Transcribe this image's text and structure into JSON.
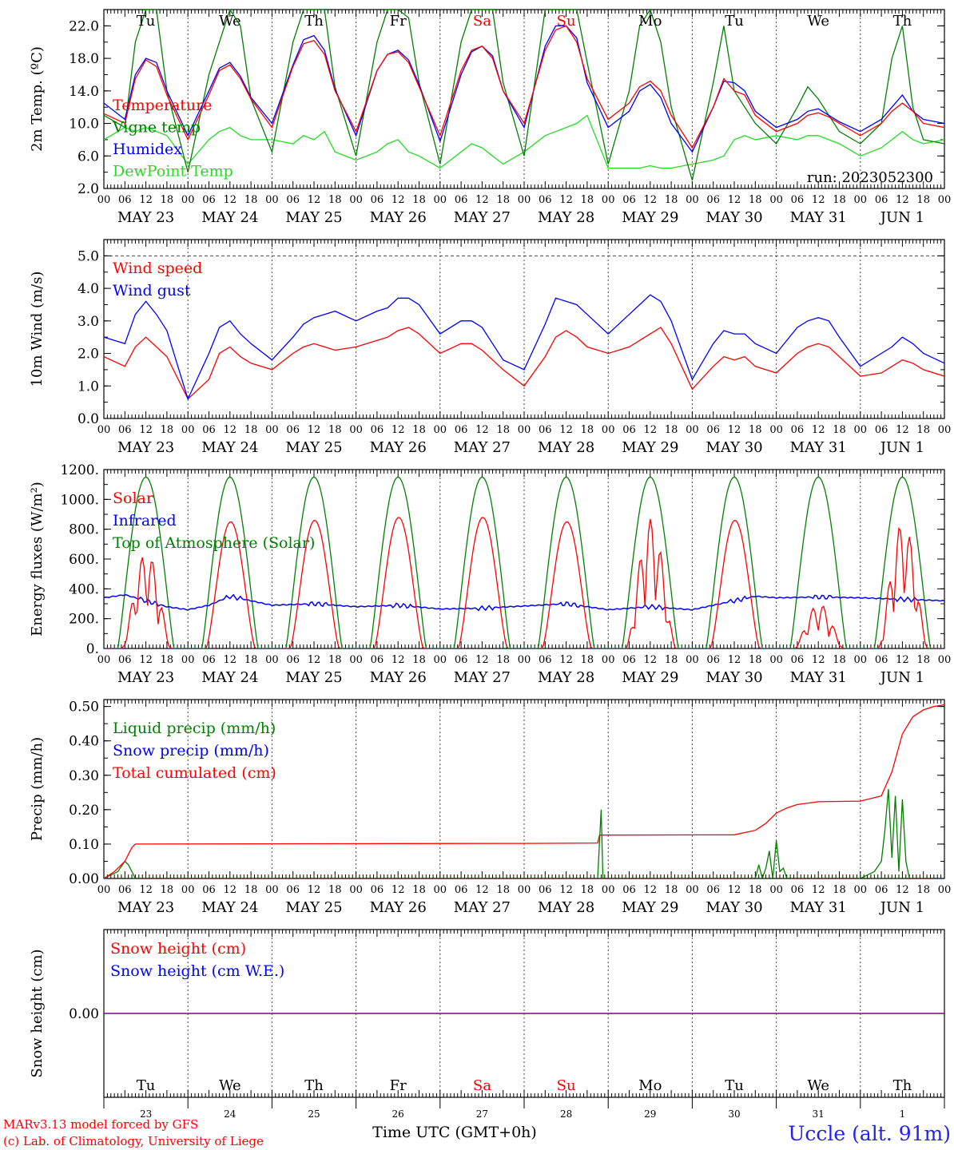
{
  "day_header": {
    "labels": [
      "Tu",
      "We",
      "Th",
      "Fr",
      "Sa",
      "Su",
      "Mo",
      "Tu",
      "We",
      "Th"
    ],
    "weekend_indices": [
      4,
      5
    ]
  },
  "date_axis": {
    "hour_ticks": [
      "00",
      "06",
      "12",
      "18"
    ],
    "dates": [
      "MAY 23",
      "MAY 24",
      "MAY 25",
      "MAY 26",
      "MAY 27",
      "MAY 28",
      "MAY 29",
      "MAY 30",
      "MAY 31",
      "JUN  1"
    ],
    "day_numbers": [
      "23",
      "24",
      "25",
      "26",
      "27",
      "28",
      "29",
      "30",
      "31",
      "1"
    ],
    "final_hour": "00"
  },
  "colors": {
    "red": "#ff0000",
    "green": "#008000",
    "blue": "#0000ff",
    "lightgreen": "#22dd22",
    "purple": "#800080",
    "axis": "#000000",
    "footer_red": "#ff0000",
    "location_blue": "#2222ee"
  },
  "chart_data": [
    {
      "type": "line",
      "id": "temperature",
      "ylabel": "2m Temp. (ºC)",
      "ylim": [
        2,
        24
      ],
      "yticks": [
        "2.0",
        "6.0",
        "10.0",
        "14.0",
        "18.0",
        "22.0"
      ],
      "ytick_values": [
        2,
        6,
        10,
        14,
        18,
        22
      ],
      "grid_y": [],
      "legend_placement": "top-left",
      "annotation": "run: 2023052300",
      "x": [
        0,
        6,
        9,
        12,
        15,
        18,
        24,
        30,
        33,
        36,
        39,
        42,
        48,
        54,
        57,
        60,
        63,
        66,
        72,
        78,
        81,
        84,
        87,
        90,
        96,
        102,
        105,
        108,
        111,
        114,
        120,
        126,
        129,
        132,
        135,
        138,
        144,
        150,
        153,
        156,
        159,
        162,
        168,
        174,
        177,
        180,
        183,
        186,
        192,
        198,
        201,
        204,
        207,
        210,
        216,
        222,
        225,
        228,
        231,
        234,
        240
      ],
      "series": [
        {
          "name": "Temperature",
          "color": "#ff0000",
          "values": [
            11.2,
            10.0,
            15.5,
            17.8,
            17.0,
            13.5,
            8.0,
            13.5,
            16.5,
            17.2,
            15.5,
            13.0,
            9.5,
            17.0,
            19.8,
            20.2,
            18.5,
            14.0,
            9.0,
            16.5,
            18.5,
            18.8,
            17.5,
            14.5,
            8.5,
            16.5,
            19.0,
            19.5,
            18.0,
            14.0,
            10.0,
            19.0,
            21.5,
            22.0,
            20.0,
            15.5,
            10.5,
            12.5,
            14.5,
            15.2,
            14.0,
            11.0,
            7.0,
            12.0,
            15.5,
            14.0,
            13.5,
            11.0,
            9.0,
            10.0,
            11.0,
            11.3,
            10.8,
            10.0,
            8.5,
            10.0,
            11.5,
            12.5,
            11.5,
            10.0,
            9.5
          ]
        },
        {
          "name": "Vigne temp",
          "color": "#008000",
          "values": [
            11.0,
            9.5,
            20.0,
            24.0,
            24.0,
            14.0,
            4.0,
            16.0,
            20.0,
            24.0,
            22.0,
            13.0,
            6.5,
            20.0,
            24.0,
            24.0,
            24.0,
            14.5,
            6.0,
            20.0,
            24.0,
            24.0,
            23.0,
            15.0,
            5.0,
            20.0,
            24.0,
            24.0,
            24.0,
            15.0,
            6.0,
            24.0,
            24.0,
            24.0,
            24.0,
            17.5,
            5.0,
            14.0,
            22.0,
            24.0,
            20.0,
            12.0,
            3.0,
            15.0,
            22.0,
            14.0,
            12.0,
            10.0,
            7.5,
            12.0,
            14.5,
            13.0,
            11.0,
            9.0,
            7.5,
            10.0,
            18.0,
            22.0,
            12.0,
            8.0,
            7.5
          ]
        },
        {
          "name": "Humidex",
          "color": "#0000ff",
          "values": [
            12.5,
            10.5,
            16.0,
            18.0,
            17.5,
            14.0,
            8.5,
            14.0,
            16.8,
            17.5,
            15.8,
            13.2,
            10.0,
            17.2,
            20.3,
            20.8,
            19.0,
            14.2,
            8.5,
            16.5,
            18.5,
            19.0,
            17.8,
            14.8,
            7.8,
            16.0,
            18.8,
            19.5,
            18.3,
            14.0,
            9.5,
            19.5,
            22.0,
            22.0,
            20.5,
            15.0,
            9.5,
            11.5,
            14.0,
            14.8,
            13.2,
            10.0,
            6.5,
            12.0,
            15.2,
            15.0,
            14.0,
            11.5,
            9.5,
            10.5,
            11.5,
            11.8,
            11.0,
            10.2,
            9.0,
            10.5,
            12.0,
            13.5,
            11.5,
            10.5,
            10.0
          ]
        },
        {
          "name": "DewPoint Temp",
          "color": "#22dd22",
          "values": [
            8.0,
            9.5,
            9.0,
            9.5,
            9.0,
            8.5,
            5.0,
            8.0,
            9.0,
            9.5,
            8.5,
            8.0,
            8.0,
            7.5,
            8.5,
            8.0,
            9.0,
            6.5,
            5.5,
            6.5,
            7.5,
            8.0,
            6.5,
            6.0,
            4.5,
            6.5,
            7.5,
            7.0,
            6.0,
            5.0,
            6.5,
            8.5,
            9.0,
            9.5,
            10.0,
            11.0,
            4.5,
            4.5,
            4.5,
            4.8,
            4.5,
            4.5,
            5.0,
            5.5,
            6.0,
            8.0,
            8.5,
            8.0,
            8.5,
            8.0,
            8.5,
            8.5,
            8.0,
            7.5,
            6.0,
            7.0,
            8.0,
            9.0,
            8.0,
            7.5,
            8.0
          ]
        }
      ]
    },
    {
      "type": "line",
      "id": "wind",
      "ylabel": "10m Wind (m/s)",
      "ylim": [
        0,
        5.5
      ],
      "yticks": [
        "0.0",
        "1.0",
        "2.0",
        "3.0",
        "4.0",
        "5.0"
      ],
      "ytick_values": [
        0,
        1,
        2,
        3,
        4,
        5
      ],
      "grid_y": [
        5
      ],
      "legend_placement": "top-left",
      "x": [
        0,
        6,
        9,
        12,
        15,
        18,
        24,
        30,
        33,
        36,
        39,
        42,
        48,
        54,
        57,
        60,
        63,
        66,
        72,
        78,
        81,
        84,
        87,
        90,
        96,
        102,
        105,
        108,
        111,
        114,
        120,
        126,
        129,
        132,
        135,
        138,
        144,
        150,
        153,
        156,
        159,
        162,
        168,
        174,
        177,
        180,
        183,
        186,
        192,
        198,
        201,
        204,
        207,
        210,
        216,
        222,
        225,
        228,
        231,
        234,
        240
      ],
      "series": [
        {
          "name": "Wind speed",
          "color": "#ff0000",
          "values": [
            1.9,
            1.6,
            2.2,
            2.5,
            2.2,
            1.9,
            0.6,
            1.2,
            2.0,
            2.2,
            1.9,
            1.7,
            1.5,
            2.0,
            2.2,
            2.3,
            2.2,
            2.1,
            2.2,
            2.4,
            2.5,
            2.7,
            2.8,
            2.6,
            2.0,
            2.3,
            2.3,
            2.1,
            1.8,
            1.5,
            1.0,
            1.9,
            2.5,
            2.7,
            2.5,
            2.2,
            2.0,
            2.2,
            2.4,
            2.6,
            2.8,
            2.3,
            0.9,
            1.6,
            1.9,
            1.8,
            1.9,
            1.6,
            1.4,
            2.0,
            2.2,
            2.3,
            2.2,
            1.9,
            1.3,
            1.4,
            1.6,
            1.8,
            1.7,
            1.5,
            1.3
          ]
        },
        {
          "name": "Wind gust",
          "color": "#0000ff",
          "values": [
            2.5,
            2.3,
            3.2,
            3.6,
            3.2,
            2.7,
            0.6,
            2.0,
            2.8,
            3.0,
            2.6,
            2.3,
            1.8,
            2.5,
            2.9,
            3.1,
            3.2,
            3.3,
            3.0,
            3.3,
            3.4,
            3.7,
            3.7,
            3.5,
            2.6,
            3.0,
            3.0,
            2.8,
            2.3,
            1.8,
            1.5,
            2.9,
            3.7,
            3.6,
            3.5,
            3.2,
            2.6,
            3.2,
            3.5,
            3.8,
            3.6,
            3.0,
            1.2,
            2.3,
            2.7,
            2.6,
            2.6,
            2.3,
            2.0,
            2.8,
            3.0,
            3.1,
            3.0,
            2.5,
            1.6,
            2.0,
            2.2,
            2.5,
            2.3,
            2.0,
            1.7
          ]
        }
      ]
    },
    {
      "type": "line",
      "id": "energy",
      "ylabel": "Energy fluxes (W/m²)",
      "ylim": [
        0,
        1200
      ],
      "yticks": [
        "0.",
        "200.",
        "400.",
        "600.",
        "800.",
        "1000.",
        "1200."
      ],
      "ytick_values": [
        0,
        200,
        400,
        600,
        800,
        1000,
        1200
      ],
      "grid_y": [],
      "legend_placement": "top-left",
      "solar_peaks": [
        650,
        850,
        860,
        880,
        880,
        850,
        870,
        860,
        300,
        850
      ],
      "infrared": {
        "x": [
          0,
          6,
          12,
          18,
          24,
          30,
          36,
          42,
          48,
          60,
          72,
          84,
          96,
          108,
          120,
          132,
          144,
          156,
          168,
          180,
          186,
          192,
          204,
          216,
          228,
          240
        ],
        "values": [
          340,
          360,
          320,
          280,
          260,
          290,
          350,
          320,
          290,
          300,
          280,
          290,
          265,
          270,
          285,
          300,
          260,
          280,
          260,
          320,
          350,
          340,
          345,
          340,
          330,
          320
        ]
      },
      "top_peak": 1150,
      "series": [
        {
          "name": "Solar",
          "color": "#ff0000"
        },
        {
          "name": "Infrared",
          "color": "#0000ff"
        },
        {
          "name": "Top of Atmosphere (Solar)",
          "color": "#008000"
        }
      ]
    },
    {
      "type": "line",
      "id": "precip",
      "ylabel": "Precip (mm/h)",
      "ylim": [
        0,
        0.52
      ],
      "yticks": [
        "0.00",
        "0.10",
        "0.20",
        "0.30",
        "0.40",
        "0.50"
      ],
      "ytick_values": [
        0,
        0.1,
        0.2,
        0.3,
        0.4,
        0.5
      ],
      "grid_y": [],
      "legend_placement": "top-left",
      "series": [
        {
          "name": "Liquid precip (mm/h)",
          "color": "#008000",
          "x": [
            0,
            4,
            6,
            7,
            8,
            9,
            140,
            141,
            142,
            142.5,
            143,
            144,
            186,
            187,
            188,
            189,
            190,
            191,
            192,
            193,
            194,
            195,
            196,
            200,
            216,
            220,
            222,
            223,
            224,
            225,
            226,
            227,
            228,
            229,
            230,
            236,
            240
          ],
          "values": [
            0,
            0.02,
            0.05,
            0.04,
            0.02,
            0,
            0,
            0,
            0.2,
            0,
            0,
            0,
            0,
            0.04,
            0,
            0.03,
            0.08,
            0,
            0.11,
            0.02,
            0.03,
            0,
            0,
            0,
            0,
            0.02,
            0.05,
            0.14,
            0.26,
            0.06,
            0.24,
            0.02,
            0.23,
            0.05,
            0,
            0,
            0
          ]
        },
        {
          "name": "Snow precip (mm/h)",
          "color": "#0000ff",
          "x": [
            0,
            240
          ],
          "values": [
            0,
            0
          ]
        },
        {
          "name": "Total cumulated (cm)",
          "color": "#ff0000",
          "x": [
            0,
            3,
            6,
            8,
            9,
            60,
            120,
            141,
            141.5,
            142,
            144,
            180,
            186,
            189,
            192,
            195,
            198,
            204,
            216,
            222,
            225,
            228,
            231,
            234,
            237,
            240
          ],
          "values": [
            0,
            0.02,
            0.05,
            0.09,
            0.1,
            0.101,
            0.102,
            0.103,
            0.125,
            0.126,
            0.126,
            0.127,
            0.14,
            0.16,
            0.19,
            0.205,
            0.215,
            0.223,
            0.225,
            0.24,
            0.31,
            0.42,
            0.47,
            0.49,
            0.5,
            0.505
          ]
        }
      ]
    },
    {
      "type": "line",
      "id": "snow",
      "ylabel": "Snow height (cm)",
      "ylim": [
        -1,
        1
      ],
      "yticks": [
        "0.00"
      ],
      "ytick_values": [
        0
      ],
      "grid_y": [],
      "legend_placement": "top-left",
      "series": [
        {
          "name": "Snow height (cm)",
          "color": "#ff0000",
          "x": [
            0,
            240
          ],
          "values": [
            0,
            0
          ]
        },
        {
          "name": "Snow height (cm W.E.)",
          "color": "#0000ff",
          "x": [
            0,
            240
          ],
          "values": [
            0,
            0
          ]
        }
      ]
    }
  ],
  "footer": {
    "xlabel": "Time UTC (GMT+0h)",
    "xlabel_overlap": "MAR",
    "model_credit": "MARv3.13 model forced by GFS",
    "lab_credit": "(c) Lab. of Climatology, University of Liege",
    "location": "Uccle (alt. 91m)"
  }
}
